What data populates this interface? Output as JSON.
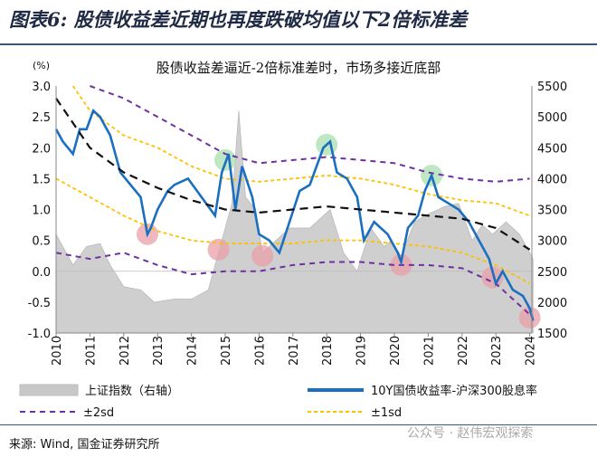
{
  "title": "图表6: 股债收益差近期也再度跌破均值以下2倍标准差",
  "source": "来源: Wind, 国金证券研究所",
  "watermark": "公众号 · 赵伟宏观探索",
  "chart_data": {
    "type": "line",
    "title": "股债收益差逼近-2倍标准差时，市场多接近底部",
    "ylabel_left": "(%)",
    "ylim_left": [
      -1.0,
      3.0
    ],
    "yticks_left": [
      "3.0",
      "2.5",
      "2.0",
      "1.5",
      "1.0",
      "0.5",
      "0.0",
      "-0.5",
      "-1.0"
    ],
    "ylim_right": [
      1500,
      5500
    ],
    "yticks_right": [
      "5500",
      "5000",
      "4500",
      "4000",
      "3500",
      "3000",
      "2500",
      "2000",
      "1500"
    ],
    "xlim": [
      2010,
      2024.2
    ],
    "xticks": [
      "2010",
      "2011",
      "2012",
      "2013",
      "2014",
      "2015",
      "2016",
      "2017",
      "2018",
      "2019",
      "2020",
      "2021",
      "2022",
      "2023",
      "2024"
    ],
    "legend": {
      "placement": "bottom",
      "items": [
        {
          "name": "上证指数（右轴）",
          "color": "#c8c8c8"
        },
        {
          "name": "10Y国债收益率-沪深300股息率",
          "color": "#1a6fc0"
        },
        {
          "name": "±2sd",
          "color": "#7030a0"
        },
        {
          "name": "±1sd",
          "color": "#ffc000"
        }
      ]
    },
    "index_right": {
      "x": [
        2010,
        2010.5,
        2010.9,
        2011.3,
        2011.6,
        2012,
        2012.5,
        2012.9,
        2013.5,
        2014,
        2014.5,
        2014.9,
        2015.2,
        2015.4,
        2015.6,
        2015.9,
        2016.1,
        2016.5,
        2016.9,
        2017.5,
        2017.9,
        2018.1,
        2018.5,
        2018.9,
        2019.3,
        2019.7,
        2019.9,
        2020.2,
        2020.6,
        2020.9,
        2021.5,
        2021.9,
        2022.3,
        2022.6,
        2022.9,
        2023.3,
        2023.7,
        2023.9,
        2024.1
      ],
      "values": [
        3100,
        2600,
        2900,
        2950,
        2600,
        2250,
        2200,
        2000,
        2050,
        2050,
        2200,
        3000,
        3600,
        5100,
        3700,
        3500,
        2800,
        3000,
        3200,
        3200,
        3400,
        3500,
        2800,
        2500,
        3200,
        2900,
        3000,
        2750,
        3300,
        3400,
        3550,
        3600,
        3000,
        3250,
        3100,
        3300,
        3100,
        2900,
        2700
      ]
    },
    "spread": {
      "x": [
        2010,
        2010.2,
        2010.5,
        2010.7,
        2010.9,
        2011.1,
        2011.3,
        2011.6,
        2011.9,
        2012.2,
        2012.5,
        2012.7,
        2012.8,
        2013,
        2013.3,
        2013.5,
        2013.9,
        2014.3,
        2014.7,
        2014.9,
        2015.1,
        2015.3,
        2015.5,
        2015.8,
        2016,
        2016.3,
        2016.6,
        2016.9,
        2017.2,
        2017.5,
        2017.9,
        2018.1,
        2018.3,
        2018.6,
        2018.9,
        2019.1,
        2019.4,
        2019.8,
        2020.1,
        2020.2,
        2020.4,
        2020.7,
        2020.9,
        2021.1,
        2021.3,
        2021.6,
        2021.9,
        2022.2,
        2022.5,
        2022.8,
        2023,
        2023.2,
        2023.5,
        2023.8,
        2024,
        2024.1
      ],
      "values": [
        2.3,
        2.1,
        1.9,
        2.3,
        2.3,
        2.6,
        2.5,
        2.2,
        1.6,
        1.4,
        1.2,
        0.6,
        0.7,
        1.0,
        1.3,
        1.4,
        1.5,
        1.2,
        0.9,
        1.6,
        1.9,
        1.0,
        1.7,
        1.2,
        0.6,
        0.5,
        0.3,
        0.8,
        1.3,
        1.4,
        2.0,
        2.1,
        1.6,
        1.5,
        1.2,
        0.5,
        0.8,
        0.6,
        0.3,
        0.15,
        0.7,
        0.9,
        1.3,
        1.55,
        1.2,
        1.1,
        1.0,
        0.8,
        0.5,
        0.2,
        -0.2,
        0.0,
        -0.3,
        -0.4,
        -0.6,
        -0.8
      ]
    },
    "mean": {
      "x": [
        2010,
        2011,
        2012,
        2013,
        2014,
        2015,
        2016,
        2017,
        2018,
        2019,
        2020,
        2021,
        2022,
        2023,
        2024
      ],
      "values": [
        2.8,
        2.0,
        1.6,
        1.35,
        1.15,
        1.0,
        0.95,
        1.0,
        1.05,
        1.0,
        0.95,
        0.9,
        0.85,
        0.7,
        0.35
      ]
    },
    "plus1sd": {
      "x": [
        2010.5,
        2011,
        2012,
        2013,
        2014,
        2015,
        2016,
        2017,
        2018,
        2019,
        2020,
        2021,
        2022,
        2023,
        2024
      ],
      "values": [
        3.0,
        2.6,
        2.2,
        2.0,
        1.7,
        1.5,
        1.45,
        1.5,
        1.55,
        1.5,
        1.4,
        1.25,
        1.15,
        1.1,
        0.9
      ]
    },
    "minus1sd": {
      "x": [
        2010,
        2011,
        2012,
        2013,
        2014,
        2015,
        2016,
        2017,
        2018,
        2019,
        2020,
        2021,
        2022,
        2023,
        2024
      ],
      "values": [
        1.5,
        1.2,
        0.9,
        0.65,
        0.5,
        0.45,
        0.45,
        0.45,
        0.5,
        0.5,
        0.45,
        0.4,
        0.3,
        0.1,
        -0.2
      ]
    },
    "plus2sd": {
      "x": [
        2011,
        2012,
        2013,
        2014,
        2015,
        2016,
        2017,
        2018,
        2019,
        2020,
        2021,
        2022,
        2023,
        2024
      ],
      "values": [
        3.0,
        2.8,
        2.5,
        2.2,
        1.9,
        1.75,
        1.8,
        1.85,
        1.8,
        1.75,
        1.6,
        1.5,
        1.45,
        1.5
      ]
    },
    "minus2sd": {
      "x": [
        2010,
        2011,
        2012,
        2013,
        2014,
        2015,
        2016,
        2017,
        2018,
        2019,
        2020,
        2021,
        2022,
        2023,
        2024
      ],
      "values": [
        0.3,
        0.2,
        0.3,
        0.1,
        -0.05,
        0.0,
        0.0,
        0.1,
        0.15,
        0.15,
        0.1,
        0.1,
        0.05,
        -0.2,
        -0.7
      ]
    },
    "highlights_top": {
      "x": [
        2015.0,
        2018.0,
        2021.1
      ],
      "values": [
        1.8,
        2.05,
        1.55
      ],
      "color": "#a8e0b0"
    },
    "highlights_bottom": {
      "x": [
        2012.7,
        2014.8,
        2016.1,
        2020.2,
        2022.9,
        2024.0
      ],
      "values": [
        0.6,
        0.35,
        0.25,
        0.1,
        -0.1,
        -0.75
      ],
      "color": "#e8a0a8"
    }
  }
}
